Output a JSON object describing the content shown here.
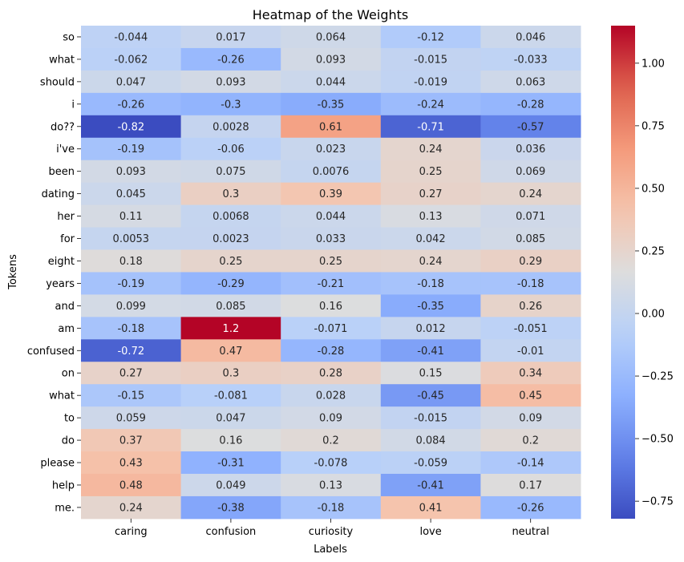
{
  "chart_data": {
    "type": "heatmap",
    "title": "Heatmap of the Weights",
    "xlabel": "Labels",
    "ylabel": "Tokens",
    "columns": [
      "caring",
      "confusion",
      "curiosity",
      "love",
      "neutral"
    ],
    "rows": [
      "so",
      "what",
      "should",
      "i",
      "do??",
      "i've",
      "been",
      "dating",
      "her",
      "for",
      "eight",
      "years",
      "and",
      "am",
      "confused",
      "on",
      "what",
      "to",
      "do",
      "please",
      "help",
      "me."
    ],
    "values": [
      [
        -0.044,
        0.017,
        0.064,
        -0.12,
        0.046
      ],
      [
        -0.062,
        -0.26,
        0.093,
        -0.015,
        -0.033
      ],
      [
        0.047,
        0.093,
        0.044,
        -0.019,
        0.063
      ],
      [
        -0.26,
        -0.3,
        -0.35,
        -0.24,
        -0.28
      ],
      [
        -0.82,
        0.0028,
        0.61,
        -0.71,
        -0.57
      ],
      [
        -0.19,
        -0.06,
        0.023,
        0.24,
        0.036
      ],
      [
        0.093,
        0.075,
        0.0076,
        0.25,
        0.069
      ],
      [
        0.045,
        0.3,
        0.39,
        0.27,
        0.24
      ],
      [
        0.11,
        0.0068,
        0.044,
        0.13,
        0.071
      ],
      [
        0.0053,
        0.0023,
        0.033,
        0.042,
        0.085
      ],
      [
        0.18,
        0.25,
        0.25,
        0.24,
        0.29
      ],
      [
        -0.19,
        -0.29,
        -0.21,
        -0.18,
        -0.18
      ],
      [
        0.099,
        0.085,
        0.16,
        -0.35,
        0.26
      ],
      [
        -0.18,
        1.2,
        -0.071,
        0.012,
        -0.051
      ],
      [
        -0.72,
        0.47,
        -0.28,
        -0.41,
        -0.01
      ],
      [
        0.27,
        0.3,
        0.28,
        0.15,
        0.34
      ],
      [
        -0.15,
        -0.081,
        0.028,
        -0.45,
        0.45
      ],
      [
        0.059,
        0.047,
        0.09,
        -0.015,
        0.09
      ],
      [
        0.37,
        0.16,
        0.2,
        0.084,
        0.2
      ],
      [
        0.43,
        -0.31,
        -0.078,
        -0.059,
        -0.14
      ],
      [
        0.48,
        0.049,
        0.13,
        -0.41,
        0.17
      ],
      [
        0.24,
        -0.38,
        -0.18,
        0.41,
        -0.26
      ]
    ],
    "colormap": "coolwarm",
    "vmin": -0.82,
    "vmax": 1.15,
    "colorbar_ticks": [
      -0.75,
      -0.5,
      -0.25,
      0.0,
      0.25,
      0.5,
      0.75,
      1.0
    ],
    "colorbar_tick_labels": [
      "−0.75",
      "−0.50",
      "−0.25",
      "0.00",
      "0.25",
      "0.50",
      "0.75",
      "1.00"
    ],
    "grid": false,
    "legend": "colorbar-right"
  }
}
